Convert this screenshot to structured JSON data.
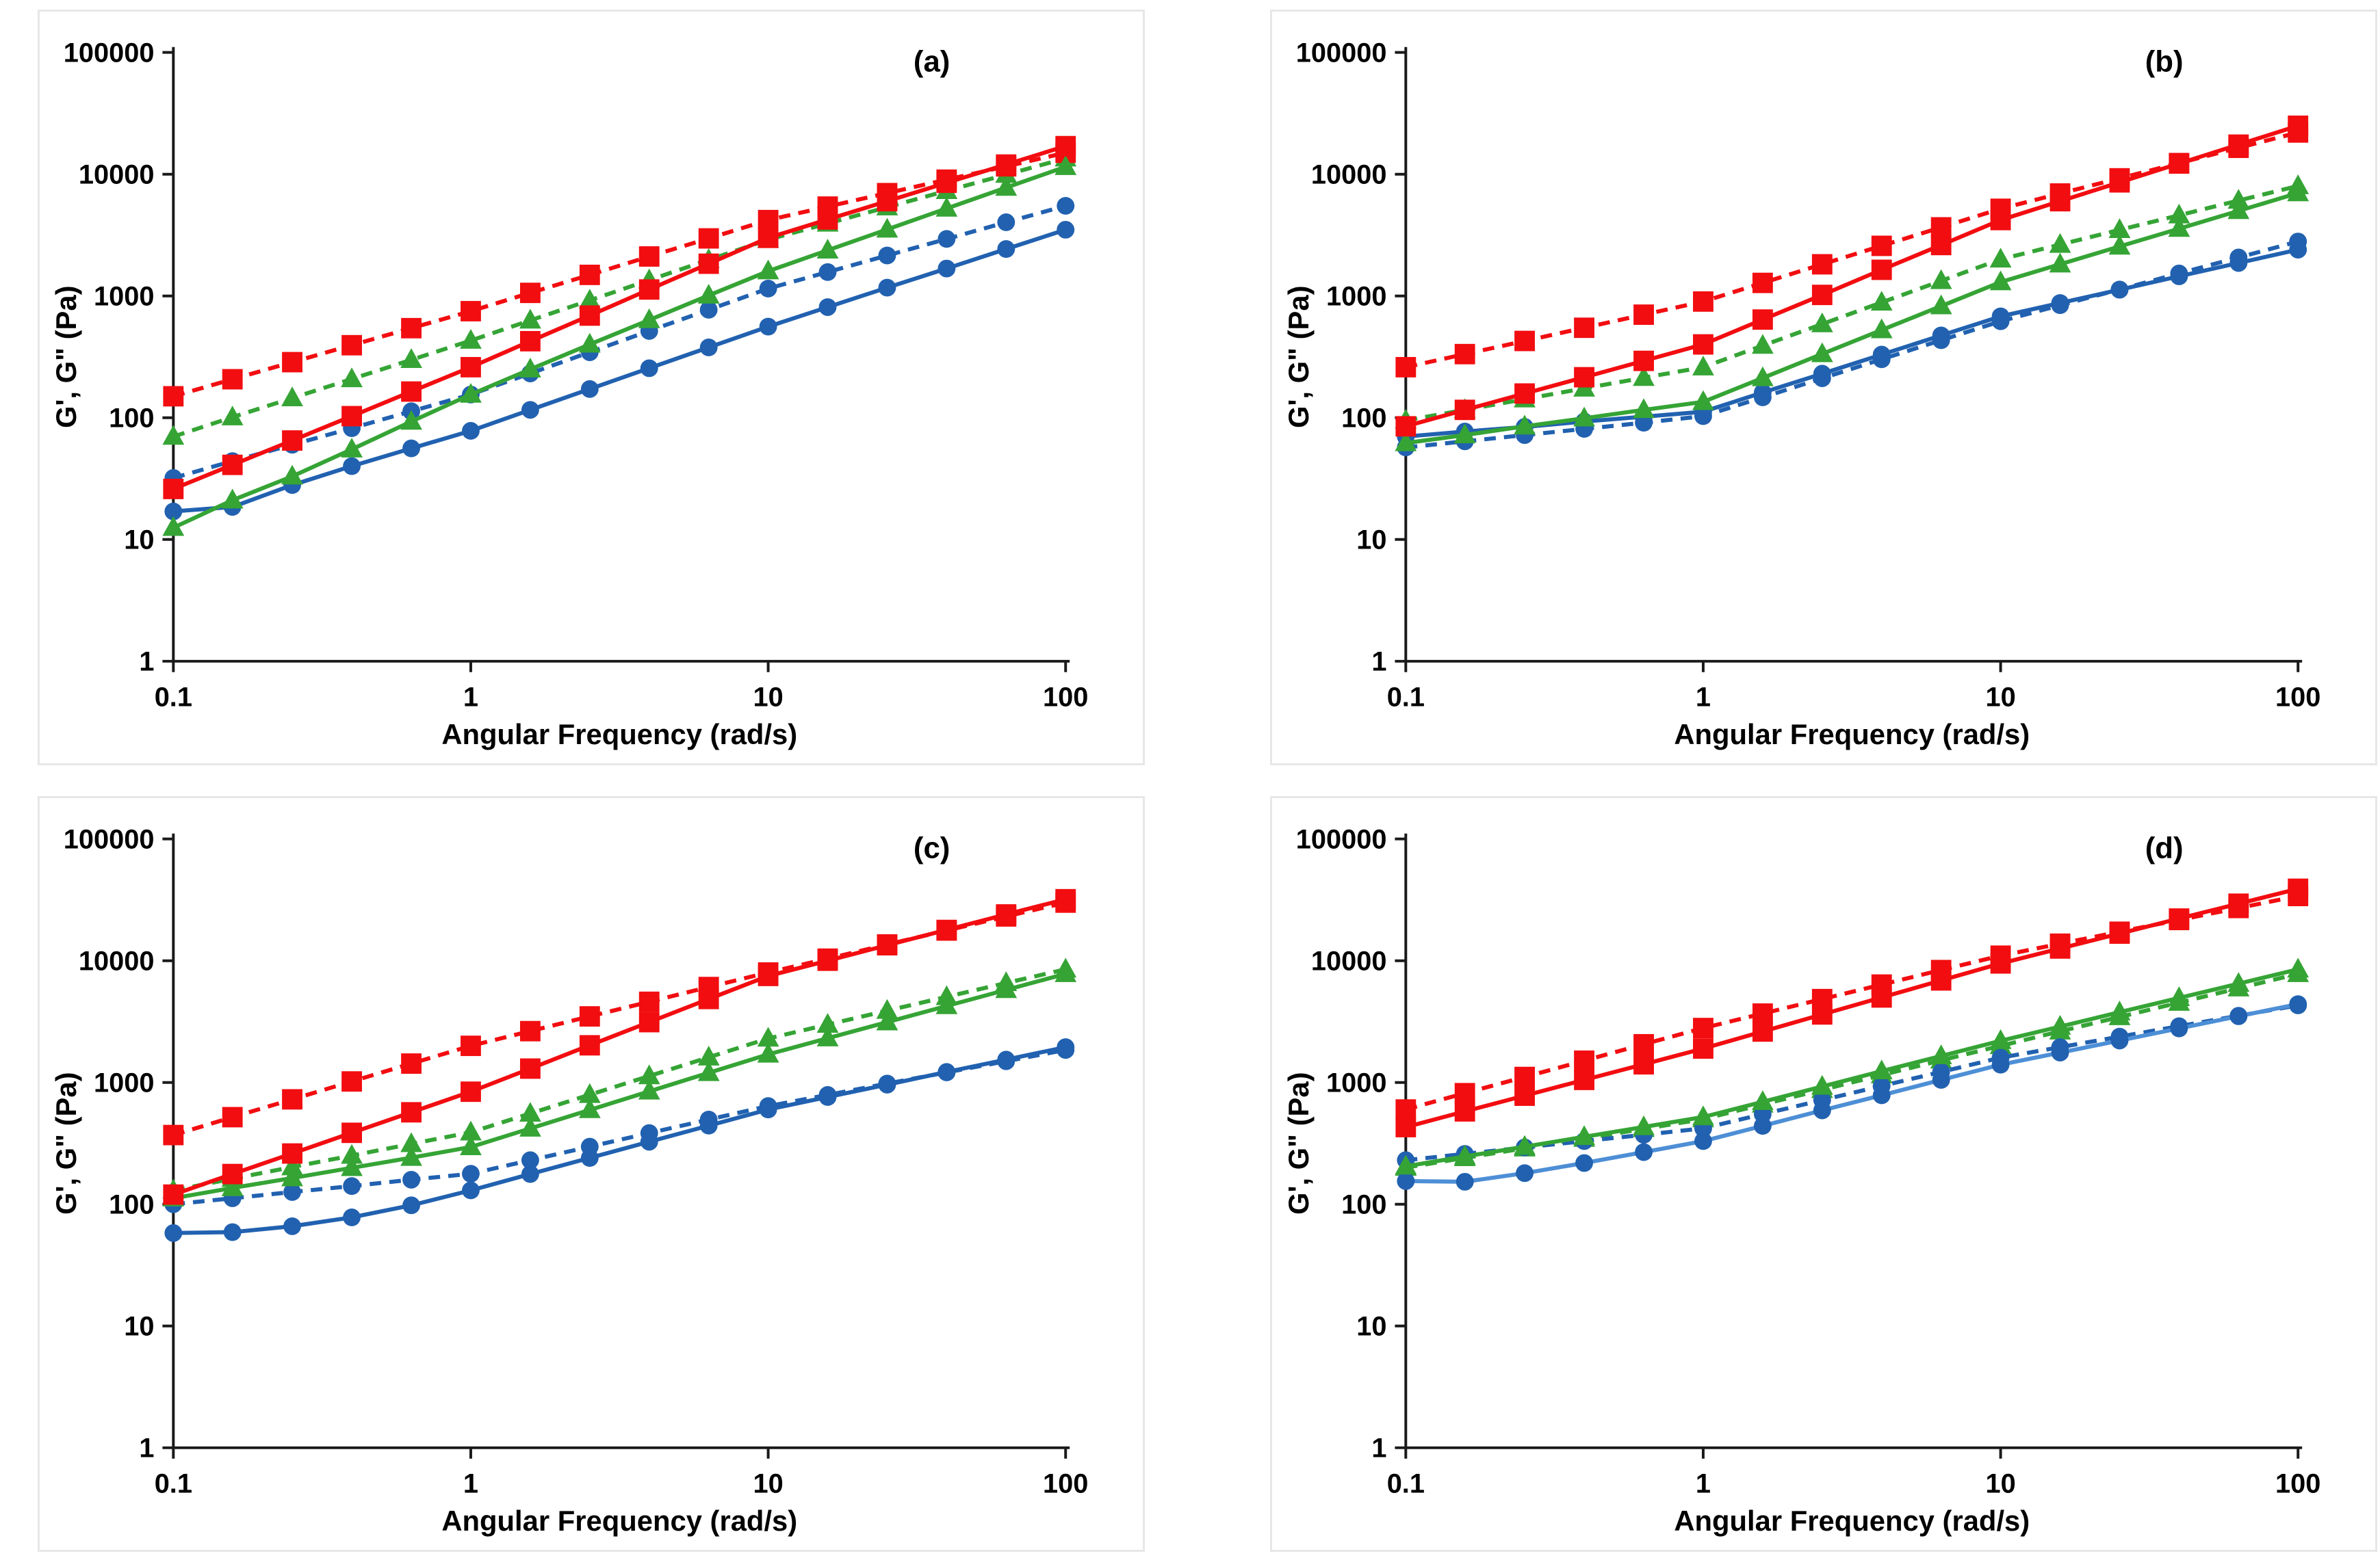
{
  "figure": {
    "background": "#ffffff",
    "panel_border": "#e7e7e7"
  },
  "colors": {
    "red": "#F20D10",
    "green": "#35A435",
    "blue": "#2161B0",
    "light_blue": "#4D8FD6",
    "axis": "#1a1a1a",
    "text": "#000000"
  },
  "axes": {
    "x_label": "Angular Frequency (rad/s)",
    "y_label": "G', G\" (Pa)",
    "x_tick_labels": [
      "0.1",
      "1",
      "10",
      "100"
    ],
    "y_tick_labels": [
      "1",
      "10",
      "100",
      "1000",
      "10000",
      "100000"
    ],
    "x_ticks": [
      0.1,
      1,
      10,
      100
    ],
    "y_ticks": [
      1,
      10,
      100,
      1000,
      10000,
      100000
    ],
    "x_range": [
      0.1,
      100
    ],
    "y_range": [
      1,
      100000
    ],
    "scale": "log-log",
    "grid": false,
    "legend": "none"
  },
  "chart_data": [
    {
      "panel_label": "(a)",
      "type": "line",
      "x": [
        0.1,
        0.158,
        0.251,
        0.398,
        0.631,
        1,
        1.585,
        2.512,
        3.981,
        6.31,
        10,
        15.85,
        25.12,
        39.81,
        63.1,
        100
      ],
      "series": [
        {
          "name": "G\" green triangles (dashed)",
          "marker": "triangle",
          "dash": true,
          "color_key": "green",
          "values": [
            70,
            101,
            145,
            208,
            299,
            430,
            630,
            920,
            1350,
            1980,
            2900,
            3940,
            5360,
            7300,
            9920,
            13500
          ]
        },
        {
          "name": "G\" blue circles (dashed)",
          "marker": "circle",
          "dash": true,
          "color_key": "blue",
          "values": [
            32,
            44,
            60,
            82,
            113,
            155,
            231,
            345,
            516,
            770,
            1150,
            1570,
            2150,
            2940,
            4030,
            5500
          ]
        },
        {
          "name": "G\" red squares (dashed)",
          "marker": "square",
          "dash": true,
          "color_key": "red",
          "values": [
            150,
            207,
            286,
            394,
            544,
            750,
            1060,
            1490,
            2110,
            2970,
            4200,
            5420,
            6990,
            9020,
            11600,
            15000
          ]
        },
        {
          "name": "G' blue circles (solid)",
          "marker": "circle",
          "dash": false,
          "color_key": "blue",
          "values": [
            17,
            18.5,
            28,
            40,
            56,
            78,
            116,
            172,
            255,
            378,
            560,
            810,
            1170,
            1680,
            2430,
            3500
          ]
        },
        {
          "name": "G' green triangles (solid)",
          "marker": "triangle",
          "dash": false,
          "color_key": "green",
          "values": [
            12.5,
            21,
            33,
            55,
            93,
            155,
            250,
            400,
            635,
            1010,
            1600,
            2370,
            3520,
            5230,
            7760,
            11500
          ]
        },
        {
          "name": "G' red squares (solid)",
          "marker": "square",
          "dash": false,
          "color_key": "red",
          "values": [
            26,
            41,
            65,
            103,
            164,
            260,
            425,
            690,
            1130,
            1840,
            3000,
            4250,
            6000,
            8500,
            12000,
            17000
          ]
        }
      ]
    },
    {
      "panel_label": "(b)",
      "type": "line",
      "x": [
        0.1,
        0.158,
        0.251,
        0.398,
        0.631,
        1,
        1.585,
        2.512,
        3.981,
        6.31,
        10,
        15.85,
        25.12,
        39.81,
        63.1,
        100
      ],
      "series": [
        {
          "name": "G\" green triangles (dashed)",
          "marker": "triangle",
          "dash": true,
          "color_key": "green",
          "values": [
            95,
            116,
            142,
            174,
            213,
            260,
            391,
            588,
            885,
            1330,
            2000,
            2640,
            3490,
            4600,
            6080,
            8000
          ]
        },
        {
          "name": "G\" blue circles (dashed)",
          "marker": "circle",
          "dash": true,
          "color_key": "blue",
          "values": [
            57,
            64,
            72,
            81,
            91,
            103,
            147,
            211,
            302,
            433,
            620,
            840,
            1130,
            1530,
            2070,
            2800
          ]
        },
        {
          "name": "G\" red squares (dashed)",
          "marker": "square",
          "dash": true,
          "color_key": "red",
          "values": [
            260,
            333,
            427,
            548,
            702,
            900,
            1280,
            1820,
            2580,
            3660,
            5200,
            6940,
            9250,
            12340,
            16470,
            22000
          ]
        },
        {
          "name": "G' blue circles (solid)",
          "marker": "circle",
          "dash": false,
          "color_key": "blue",
          "values": [
            70,
            77,
            84,
            93,
            102,
            112,
            161,
            230,
            330,
            474,
            680,
            875,
            1125,
            1450,
            1865,
            2400
          ]
        },
        {
          "name": "G' green triangles (solid)",
          "marker": "triangle",
          "dash": false,
          "color_key": "green",
          "values": [
            62,
            72,
            85,
            99,
            116,
            135,
            212,
            334,
            525,
            826,
            1300,
            1820,
            2550,
            3570,
            5000,
            7000
          ]
        },
        {
          "name": "G' red squares (solid)",
          "marker": "square",
          "dash": false,
          "color_key": "red",
          "values": [
            85,
            116,
            158,
            215,
            293,
            400,
            640,
            1020,
            1640,
            2620,
            4200,
            6000,
            8570,
            12240,
            17490,
            25000
          ]
        }
      ]
    },
    {
      "panel_label": "(c)",
      "type": "line",
      "x": [
        0.1,
        0.158,
        0.251,
        0.398,
        0.631,
        1,
        1.585,
        2.512,
        3.981,
        6.31,
        10,
        15.85,
        25.12,
        39.81,
        63.1,
        100
      ],
      "series": [
        {
          "name": "G\" green triangles (dashed)",
          "marker": "triangle",
          "dash": true,
          "color_key": "green",
          "values": [
            130,
            162,
            202,
            251,
            313,
            390,
            556,
            793,
            1130,
            1610,
            2300,
            2990,
            3890,
            5050,
            6570,
            8500
          ]
        },
        {
          "name": "G\" blue circles (dashed)",
          "marker": "circle",
          "dash": true,
          "color_key": "blue",
          "values": [
            100,
            112,
            126,
            141,
            159,
            178,
            230,
            297,
            384,
            496,
            640,
            790,
            980,
            1210,
            1495,
            1850
          ]
        },
        {
          "name": "G\" red squares (dashed)",
          "marker": "square",
          "dash": true,
          "color_key": "red",
          "values": [
            370,
            519,
            727,
            1020,
            1430,
            2000,
            2640,
            3490,
            4600,
            6080,
            8000,
            10400,
            13600,
            17700,
            23100,
            30000
          ]
        },
        {
          "name": "G' blue circles (solid)",
          "marker": "circle",
          "dash": false,
          "color_key": "blue",
          "values": [
            58,
            59,
            66,
            78,
            98,
            130,
            177,
            240,
            326,
            442,
            600,
            760,
            960,
            1220,
            1540,
            1950
          ]
        },
        {
          "name": "G' green triangles (solid)",
          "marker": "triangle",
          "dash": false,
          "color_key": "green",
          "values": [
            112,
            136,
            164,
            199,
            241,
            295,
            419,
            595,
            845,
            1200,
            1700,
            2310,
            3130,
            4250,
            5760,
            7800
          ]
        },
        {
          "name": "G' red squares (solid)",
          "marker": "square",
          "dash": false,
          "color_key": "red",
          "values": [
            120,
            177,
            261,
            386,
            569,
            840,
            1300,
            2020,
            3130,
            4850,
            7500,
            10000,
            13400,
            17900,
            24000,
            32000
          ]
        }
      ]
    },
    {
      "panel_label": "(d)",
      "type": "line",
      "x": [
        0.1,
        0.158,
        0.251,
        0.398,
        0.631,
        1,
        1.585,
        2.512,
        3.981,
        6.31,
        10,
        15.85,
        25.12,
        39.81,
        63.1,
        100
      ],
      "series": [
        {
          "name": "G\" green triangles (dashed)",
          "marker": "triangle",
          "dash": true,
          "color_key": "green",
          "values": [
            200,
            240,
            288,
            346,
            416,
            500,
            660,
            870,
            1150,
            1520,
            2000,
            2630,
            3450,
            4530,
            5940,
            7800
          ]
        },
        {
          "name": "G\" blue circles (dashed)",
          "marker": "circle",
          "dash": true,
          "color_key": "blue",
          "values": [
            230,
            259,
            293,
            330,
            372,
            420,
            549,
            717,
            937,
            1220,
            1600,
            1950,
            2380,
            2900,
            3530,
            4300
          ]
        },
        {
          "name": "G\" red squares (dashed)",
          "marker": "square",
          "dash": true,
          "color_key": "red",
          "values": [
            600,
            817,
            1110,
            1510,
            2060,
            2800,
            3680,
            4840,
            6370,
            8380,
            11000,
            13800,
            17300,
            21600,
            27100,
            34000
          ]
        },
        {
          "name": "G' blue circles (solid, light-blue line)",
          "marker": "circle",
          "dash": false,
          "color_key": "blue",
          "line_color_key": "light_blue",
          "values": [
            155,
            153,
            180,
            218,
            268,
            330,
            440,
            590,
            785,
            1050,
            1400,
            1760,
            2210,
            2780,
            3500,
            4400
          ]
        },
        {
          "name": "G' green triangles (solid)",
          "marker": "triangle",
          "dash": false,
          "color_key": "green",
          "values": [
            205,
            247,
            297,
            358,
            431,
            520,
            694,
            926,
            1240,
            1650,
            2200,
            2880,
            3780,
            4950,
            6480,
            8500
          ]
        },
        {
          "name": "G' red squares (solid)",
          "marker": "square",
          "dash": false,
          "color_key": "red",
          "values": [
            430,
            579,
            779,
            1050,
            1410,
            1900,
            2620,
            3620,
            4990,
            6890,
            9500,
            12600,
            16700,
            22200,
            29400,
            39000
          ]
        }
      ]
    }
  ]
}
